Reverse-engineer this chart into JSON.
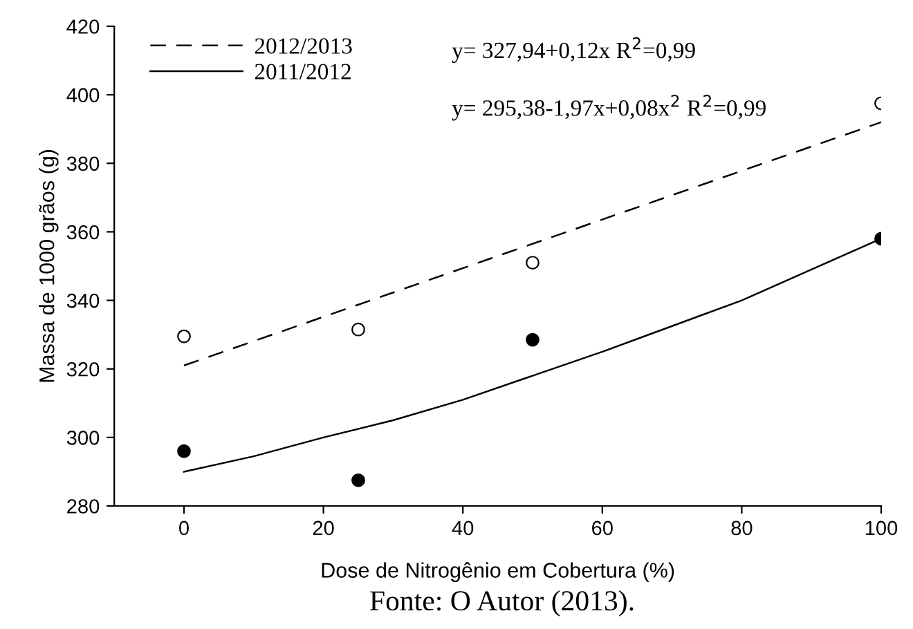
{
  "chart_data": {
    "type": "scatter",
    "xlabel": "Dose de Nitrogênio em Cobertura (%)",
    "ylabel": "Massa de 1000 grãos (g)",
    "xlim": [
      -10,
      100
    ],
    "xticks": [
      0,
      20,
      40,
      60,
      80,
      100
    ],
    "ylim": [
      280,
      420
    ],
    "yticks": [
      280,
      300,
      320,
      340,
      360,
      380,
      400,
      420
    ],
    "grid": false,
    "legend": "top left",
    "series": [
      {
        "name": "2012/2013",
        "type": "line",
        "line_style": "dashed",
        "color": "#000000",
        "x": [
          0,
          100
        ],
        "values": [
          321,
          392
        ]
      },
      {
        "name": "2011/2012",
        "type": "line",
        "line_style": "solid",
        "color": "#000000",
        "x": [
          0,
          10,
          20,
          30,
          40,
          50,
          60,
          70,
          80,
          90,
          100
        ],
        "values": [
          290,
          294.5,
          300,
          305,
          311,
          318,
          325,
          332.5,
          340,
          349,
          358
        ]
      },
      {
        "type": "scatter",
        "marker": "circle",
        "color": "#ffffff",
        "x": [
          0,
          25,
          50,
          100
        ],
        "values": [
          329.5,
          331.5,
          351,
          397.5
        ]
      },
      {
        "type": "scatter",
        "marker": "circle",
        "color": "#000000",
        "x": [
          0,
          25,
          50,
          100
        ],
        "values": [
          296,
          287.5,
          328.5,
          358
        ]
      }
    ],
    "annotations": [
      "y= 327,94+0,12x R$^{2}$=0,99",
      "y= 295,38-1,97x+0,08x$^{2}$ R$^{2}$=0,99",
      "Fonte: O Autor (2013)."
    ]
  }
}
